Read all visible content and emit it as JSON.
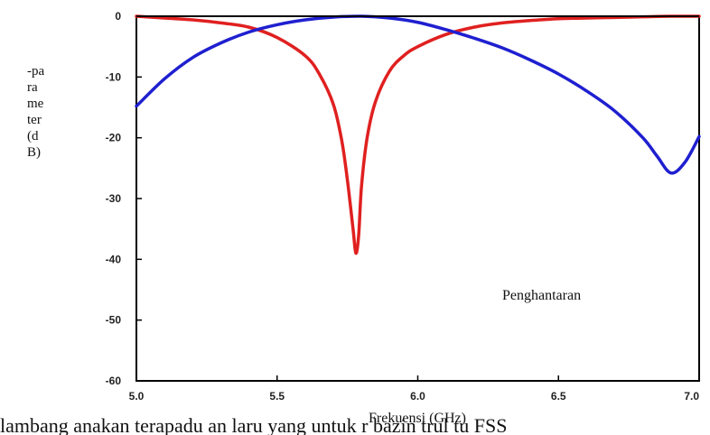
{
  "chart_data": {
    "type": "line",
    "xlabel": "Frekuensi (GHz)",
    "ylabel": "-parameter (dB)",
    "xlim": [
      5.0,
      7.0
    ],
    "ylim": [
      -60,
      0
    ],
    "x_ticks": [
      "5.0",
      "5.5",
      "6.0",
      "6.5",
      "7.0"
    ],
    "y_ticks": [
      "0",
      "-10",
      "-20",
      "-30",
      "-40",
      "-50",
      "-60"
    ],
    "grid": false,
    "annotation": "Penghantaran",
    "bottom_text": "lambang anakan terapadu an laru yang untuk r bazin trul tu FSS",
    "series": [
      {
        "color": "#e02020",
        "x": [
          5.0,
          5.1,
          5.2,
          5.3,
          5.4,
          5.5,
          5.6,
          5.65,
          5.7,
          5.73,
          5.75,
          5.77,
          5.78,
          5.79,
          5.8,
          5.82,
          5.85,
          5.9,
          5.95,
          6.0,
          6.1,
          6.2,
          6.3,
          6.4,
          6.5,
          6.6,
          6.7,
          6.8,
          6.9,
          7.0
        ],
        "values": [
          0,
          -0.3,
          -0.6,
          -1.1,
          -1.8,
          -3.5,
          -6.5,
          -9.5,
          -14.5,
          -20.5,
          -27,
          -35,
          -39,
          -36,
          -28,
          -20,
          -14,
          -9,
          -6.5,
          -5,
          -3,
          -1.8,
          -1.1,
          -0.7,
          -0.4,
          -0.3,
          -0.2,
          -0.1,
          0,
          0
        ]
      },
      {
        "color": "#1f1fd0",
        "x": [
          5.0,
          5.1,
          5.2,
          5.3,
          5.4,
          5.5,
          5.6,
          5.7,
          5.8,
          5.9,
          6.0,
          6.1,
          6.2,
          6.3,
          6.4,
          6.5,
          6.6,
          6.7,
          6.8,
          6.85,
          6.9,
          6.95,
          7.0
        ],
        "values": [
          -14.8,
          -10.3,
          -6.8,
          -4.4,
          -2.6,
          -1.4,
          -0.6,
          -0.15,
          0,
          -0.3,
          -1.0,
          -2.2,
          -3.6,
          -5.2,
          -7.2,
          -9.5,
          -12.3,
          -15.6,
          -20,
          -23,
          -25.8,
          -24,
          -19.8
        ]
      }
    ]
  }
}
